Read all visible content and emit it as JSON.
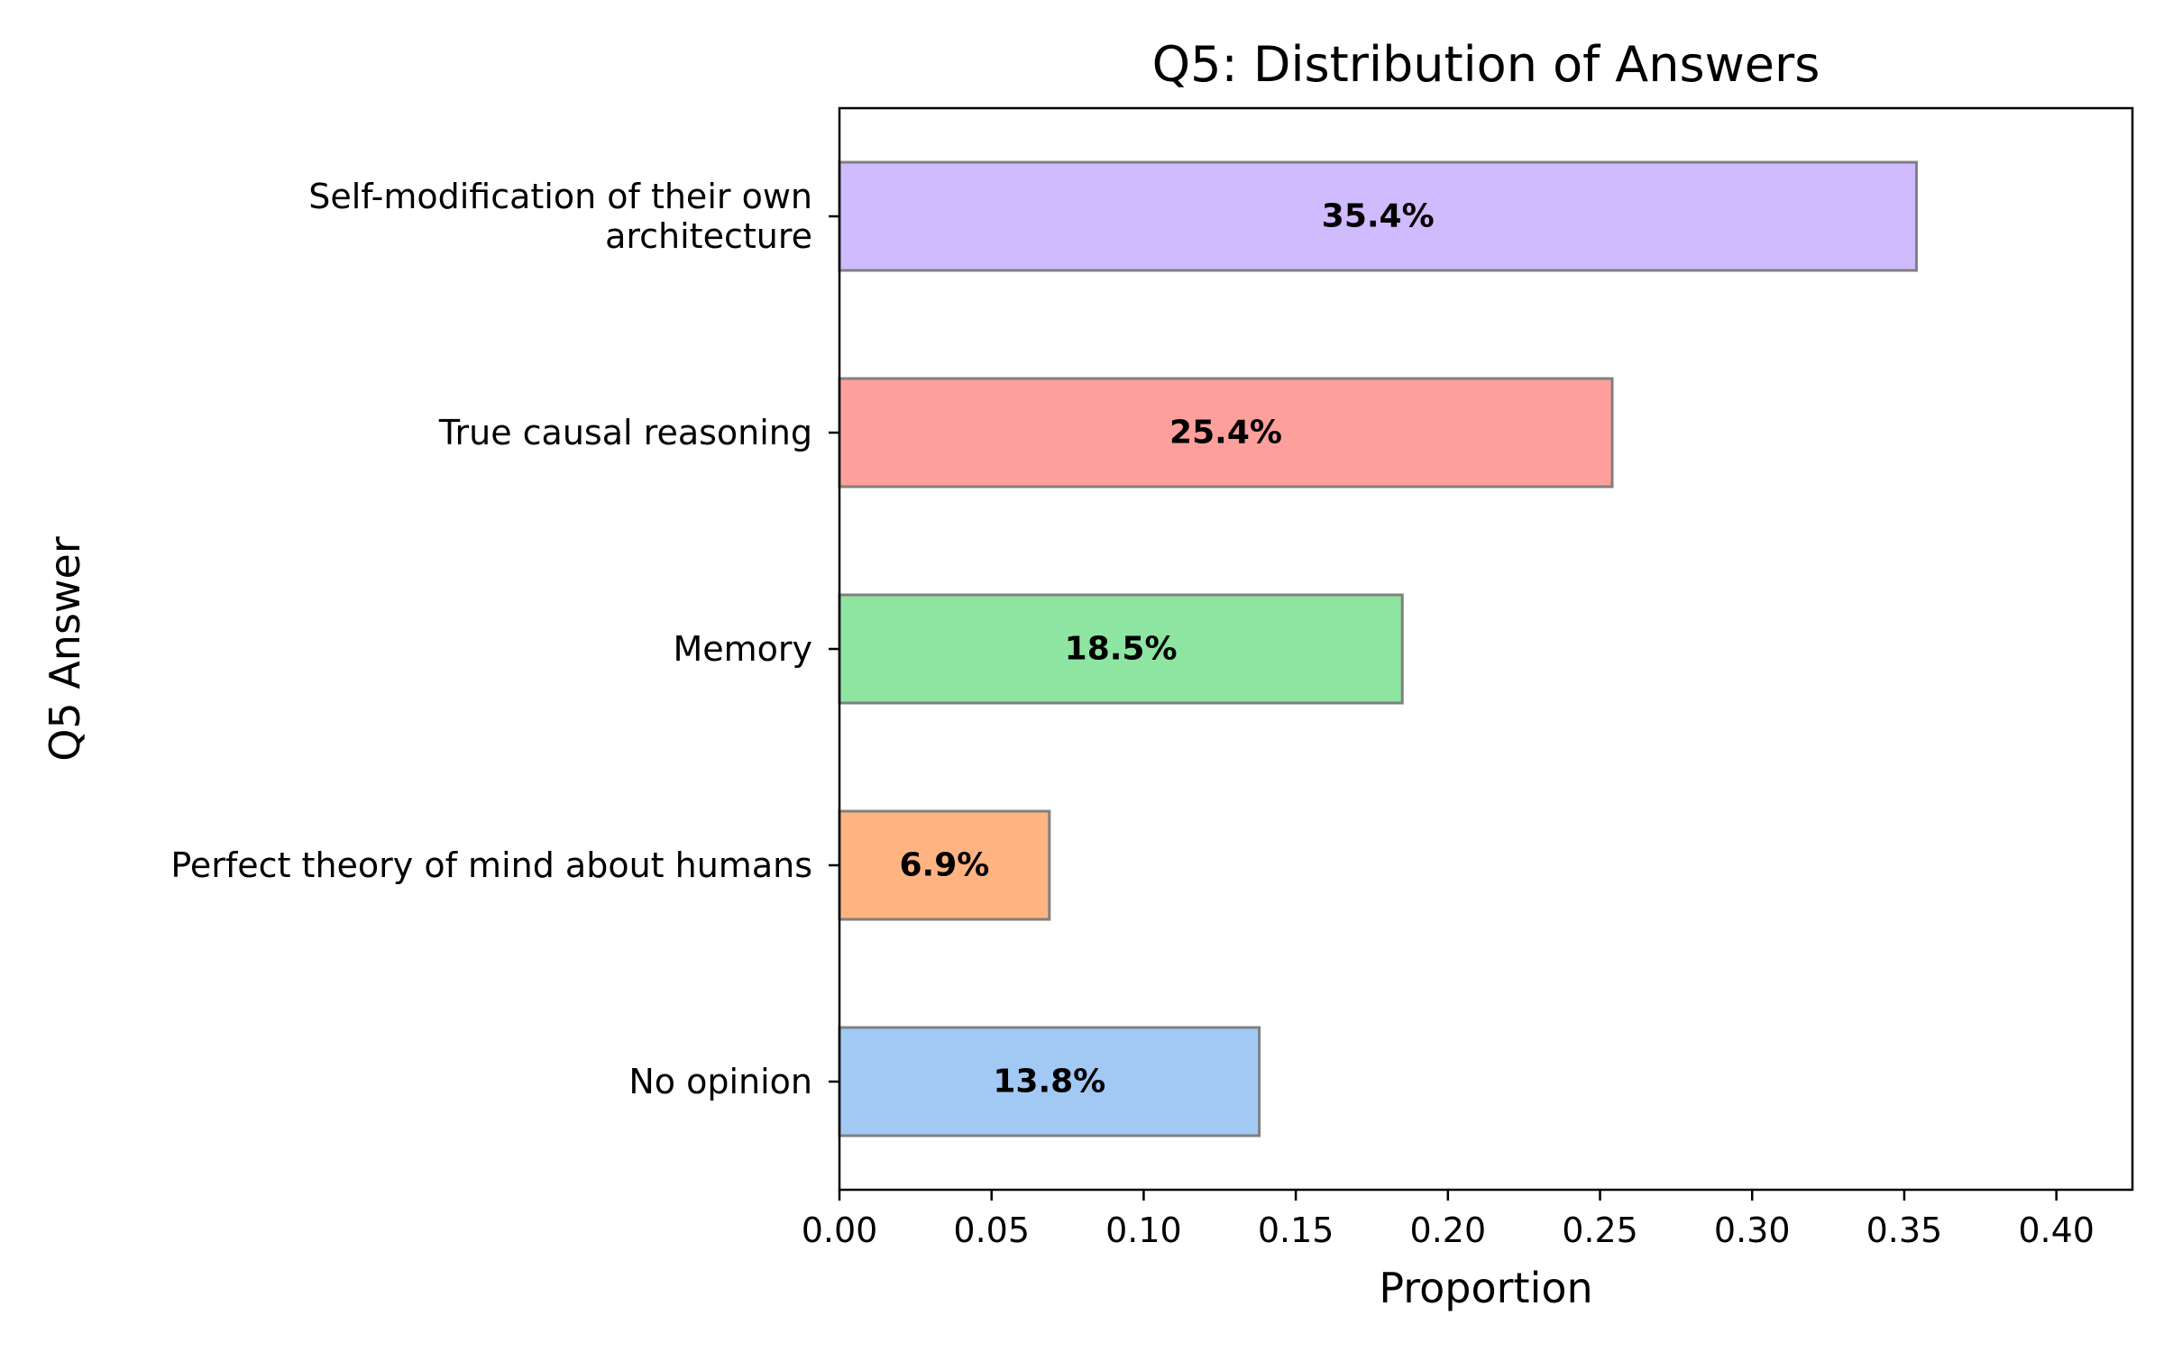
{
  "chart_data": {
    "type": "bar",
    "orientation": "horizontal",
    "title": "Q5: Distribution of Answers",
    "xlabel": "Proportion",
    "ylabel": "Q5 Answer",
    "xlim": [
      0,
      0.425
    ],
    "xticks": [
      "0.00",
      "0.05",
      "0.10",
      "0.15",
      "0.20",
      "0.25",
      "0.30",
      "0.35",
      "0.40"
    ],
    "grid": false,
    "legend": "none",
    "categories": [
      [
        "Self-modification of their own",
        "architecture"
      ],
      [
        "True causal reasoning"
      ],
      [
        "Memory"
      ],
      [
        "Perfect theory of mind about humans"
      ],
      [
        "No opinion"
      ]
    ],
    "values": [
      0.354,
      0.254,
      0.185,
      0.069,
      0.138
    ],
    "labels": [
      "35.4%",
      "25.4%",
      "18.5%",
      "6.9%",
      "13.8%"
    ],
    "colors": [
      "#d0bbff",
      "#ff9f9b",
      "#8de5a1",
      "#ffb482",
      "#a1c9f4"
    ],
    "edge_color": "#808080"
  }
}
